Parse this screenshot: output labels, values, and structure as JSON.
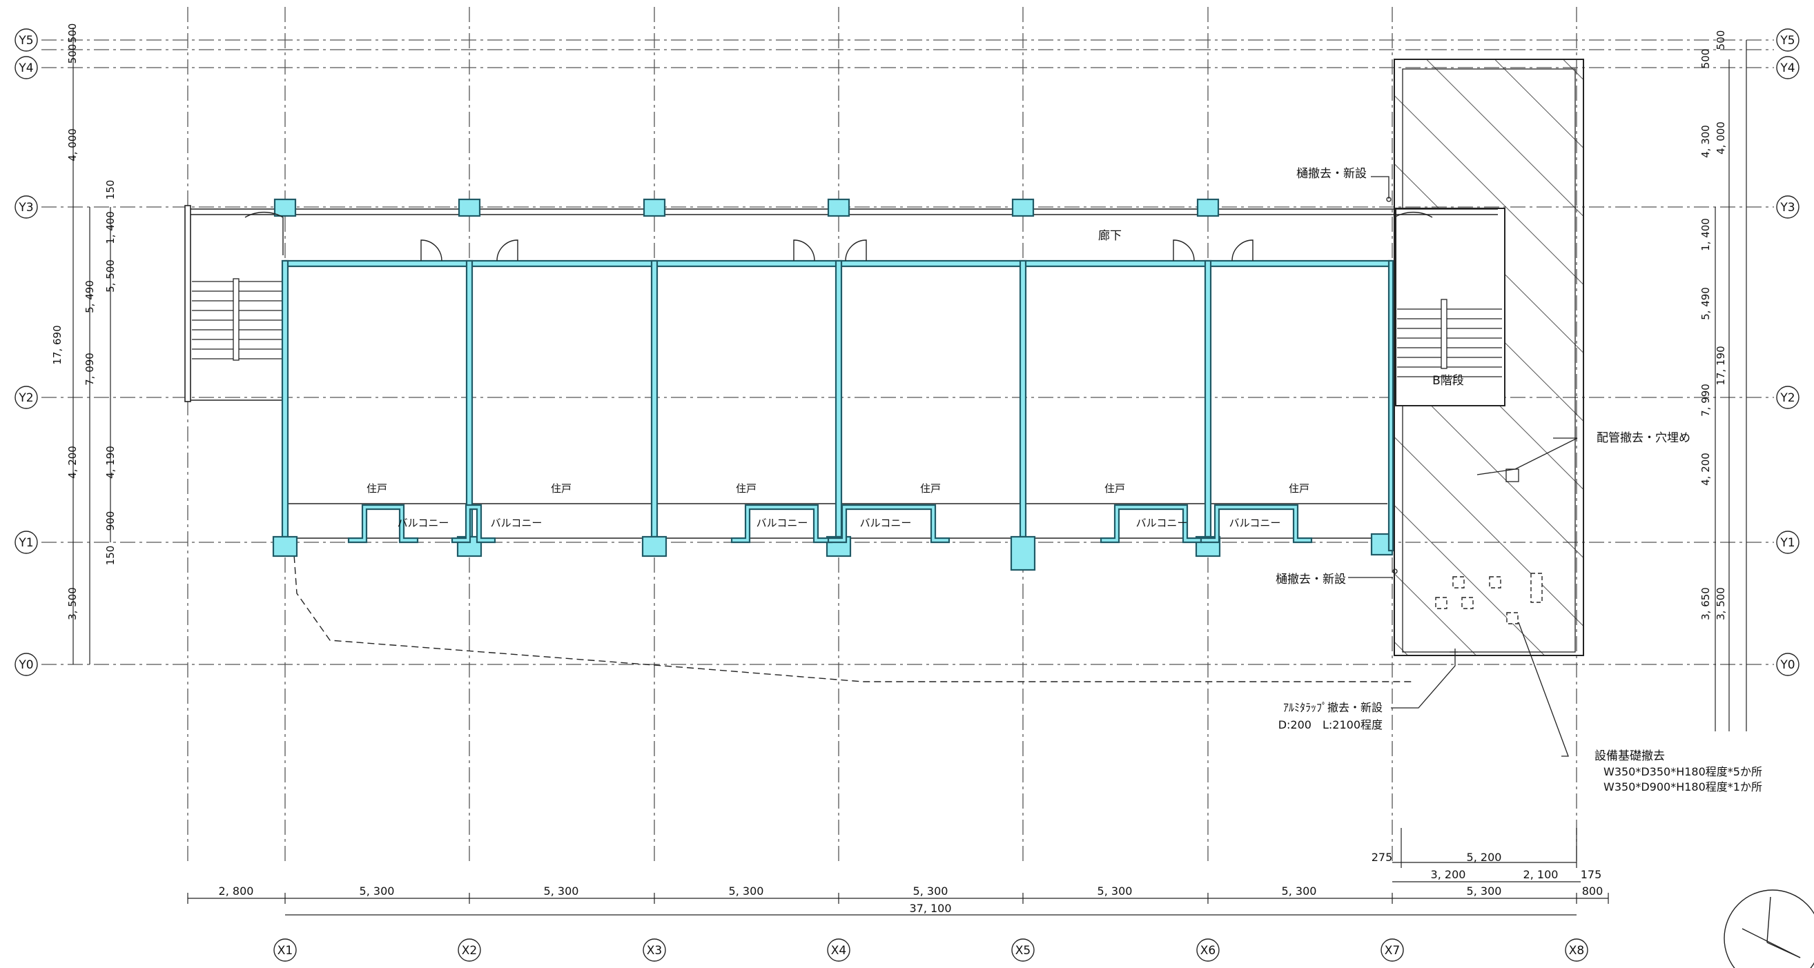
{
  "grid": {
    "x_labels": [
      "X1",
      "X2",
      "X3",
      "X4",
      "X5",
      "X6",
      "X7",
      "X8"
    ],
    "y_labels": [
      "Y5",
      "Y4",
      "Y3",
      "Y2",
      "Y1",
      "Y0"
    ]
  },
  "dims": {
    "bottom_row1": [
      "2, 800",
      "5, 300",
      "5, 300",
      "5, 300",
      "5, 300",
      "5, 300",
      "5, 300",
      "5, 300",
      "800"
    ],
    "total": "37, 100",
    "right_upper": [
      "275",
      "5, 200",
      "3, 200",
      "2, 100",
      "175"
    ],
    "left_outer": [
      "500",
      "500",
      "4, 000",
      "17, 690",
      "4, 200",
      "3, 500"
    ],
    "left_inner": [
      "150",
      "1, 400",
      "5, 490",
      "5, 500",
      "7, 090",
      "4, 190",
      "900",
      "150"
    ],
    "right_inner": [
      "500",
      "4, 300",
      "1, 400",
      "5, 490",
      "7, 990",
      "4, 200",
      "3, 650"
    ],
    "right_outer": [
      "500",
      "4, 000",
      "17, 190",
      "3, 500"
    ]
  },
  "rooms": {
    "corridor": "廊下",
    "stair_b": "B階段",
    "doors": [
      "住戸",
      "住戸",
      "住戸",
      "住戸",
      "住戸",
      "住戸"
    ],
    "balconies": [
      "バルコニー",
      "バルコニー",
      "バルコニー",
      "バルコニー",
      "バルコニー",
      "バルコニー"
    ]
  },
  "notes": {
    "gutter_top": "樋撤去・新設",
    "gutter_bottom": "樋撤去・新設",
    "pipe": "配管撤去・穴埋め",
    "trap_line1": "ｱﾙﾐﾀﾗｯﾌﾟ撤去・新設",
    "trap_line2": "D:200　L:2100程度",
    "equip_line1": "設備基礎撤去",
    "equip_line2": "W350*D350*H180程度*5か所",
    "equip_line3": "W350*D900*H180程度*1か所"
  },
  "colors": {
    "line": "#2a2a2a",
    "wall_fill": "#8ee8f0",
    "wall_stroke": "#1f5a66",
    "hatch": "#222222"
  }
}
